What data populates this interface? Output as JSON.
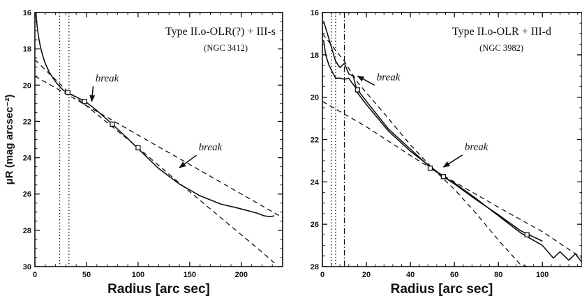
{
  "chart_data": [
    {
      "type": "line",
      "title": "Type II.o-OLR(?) + III-s",
      "subtitle": "(NGC 3412)",
      "xlabel": "Radius [arc sec]",
      "ylabel": "μR (mag arcsec⁻²)",
      "xlim": [
        0,
        240
      ],
      "ylim": [
        30,
        16
      ],
      "y_inverted": true,
      "xticks": [
        0,
        50,
        100,
        150,
        200
      ],
      "yticks": [
        16,
        18,
        20,
        22,
        24,
        26,
        28,
        30
      ],
      "series": [
        {
          "style": "solid",
          "x": [
            1,
            2,
            4,
            6,
            8,
            10,
            14,
            18,
            22,
            27,
            32,
            40,
            50,
            60,
            75,
            90,
            100,
            120,
            140,
            160,
            180,
            195,
            205,
            215,
            222,
            228,
            232
          ],
          "y": [
            16.0,
            16.7,
            17.5,
            18.05,
            18.45,
            18.8,
            19.3,
            19.65,
            19.95,
            20.25,
            20.45,
            20.65,
            20.95,
            21.4,
            22.15,
            22.95,
            23.5,
            24.6,
            25.45,
            26.1,
            26.55,
            26.75,
            26.9,
            27.05,
            27.2,
            27.25,
            27.2
          ]
        },
        {
          "style": "dashed",
          "x": [
            0,
            240
          ],
          "y": [
            19.5,
            27.3
          ]
        },
        {
          "style": "dashed",
          "x": [
            0,
            30,
            60,
            100,
            140,
            180,
            220,
            232
          ],
          "y": [
            18.6,
            20.25,
            21.6,
            23.45,
            25.4,
            27.3,
            29.2,
            29.8
          ]
        }
      ],
      "markers": [
        {
          "x": 32,
          "y": 20.4
        },
        {
          "x": 48,
          "y": 20.9
        },
        {
          "x": 75,
          "y": 22.15
        },
        {
          "x": 100,
          "y": 23.45
        }
      ],
      "vlines": [
        {
          "x": 24,
          "style": "dotted"
        },
        {
          "x": 33,
          "style": "dotted"
        }
      ],
      "annotations": [
        {
          "text": "break",
          "x": 70,
          "y": 19.8,
          "arrow_to": [
            55,
            20.9
          ]
        },
        {
          "text": "break",
          "x": 170,
          "y": 23.6,
          "arrow_to": [
            140,
            24.55
          ]
        }
      ]
    },
    {
      "type": "line",
      "title": "Type II.o-OLR + III-d",
      "subtitle": "(NGC 3982)",
      "xlabel": "Radius [arc sec]",
      "ylabel": "",
      "xlim": [
        0,
        118
      ],
      "ylim": [
        28,
        16
      ],
      "y_inverted": true,
      "xticks": [
        0,
        20,
        40,
        60,
        80,
        100
      ],
      "yticks": [
        16,
        18,
        20,
        22,
        24,
        26,
        28
      ],
      "series": [
        {
          "style": "solid",
          "x": [
            0.5,
            1.5,
            3,
            4.5,
            6,
            8,
            10,
            12,
            14,
            16,
            20,
            30,
            40,
            50,
            55,
            60,
            70,
            80,
            90,
            95,
            100,
            105,
            108,
            112,
            115,
            118
          ],
          "y": [
            17.3,
            18.0,
            18.5,
            18.8,
            19.1,
            19.1,
            19.15,
            19.1,
            19.4,
            19.65,
            20.2,
            21.5,
            22.45,
            23.4,
            23.75,
            24.05,
            24.8,
            25.6,
            26.4,
            26.7,
            27.0,
            27.6,
            27.3,
            27.7,
            27.4,
            27.8
          ]
        },
        {
          "style": "solid",
          "x": [
            0.5,
            2,
            4,
            6,
            8,
            10,
            12,
            14,
            16,
            20,
            30,
            40,
            50,
            55,
            60,
            70,
            80,
            90,
            95,
            100
          ],
          "y": [
            16.4,
            16.9,
            17.6,
            18.3,
            18.6,
            18.4,
            18.9,
            19.0,
            19.8,
            20.35,
            21.6,
            22.55,
            23.35,
            23.75,
            24.1,
            24.85,
            25.55,
            26.3,
            26.55,
            26.8
          ]
        },
        {
          "style": "dashed",
          "x": [
            0,
            10,
            16,
            30,
            40,
            50,
            55
          ],
          "y": [
            17.0,
            18.3,
            19.3,
            21.0,
            22.25,
            23.35,
            23.8
          ]
        },
        {
          "style": "dashed",
          "x": [
            0,
            20,
            40,
            50,
            60,
            80,
            100,
            118
          ],
          "y": [
            20.2,
            21.4,
            22.75,
            23.4,
            24.0,
            25.2,
            26.35,
            27.6
          ]
        },
        {
          "style": "dashed",
          "x": [
            50,
            60,
            70,
            80,
            90,
            93
          ],
          "y": [
            23.35,
            24.35,
            25.5,
            26.75,
            27.9,
            28.0
          ]
        }
      ],
      "markers": [
        {
          "x": 16,
          "y": 19.65
        },
        {
          "x": 49,
          "y": 23.35
        },
        {
          "x": 55,
          "y": 23.75
        },
        {
          "x": 93,
          "y": 26.5
        }
      ],
      "vlines": [
        {
          "x": 4,
          "style": "dotted"
        },
        {
          "x": 6,
          "style": "dotted"
        },
        {
          "x": 10,
          "style": "dashdot"
        }
      ],
      "annotations": [
        {
          "text": "break",
          "x": 30,
          "y": 19.2,
          "arrow_to": [
            16,
            19.0
          ]
        },
        {
          "text": "break",
          "x": 70,
          "y": 22.5,
          "arrow_to": [
            55,
            23.3
          ]
        }
      ]
    }
  ]
}
